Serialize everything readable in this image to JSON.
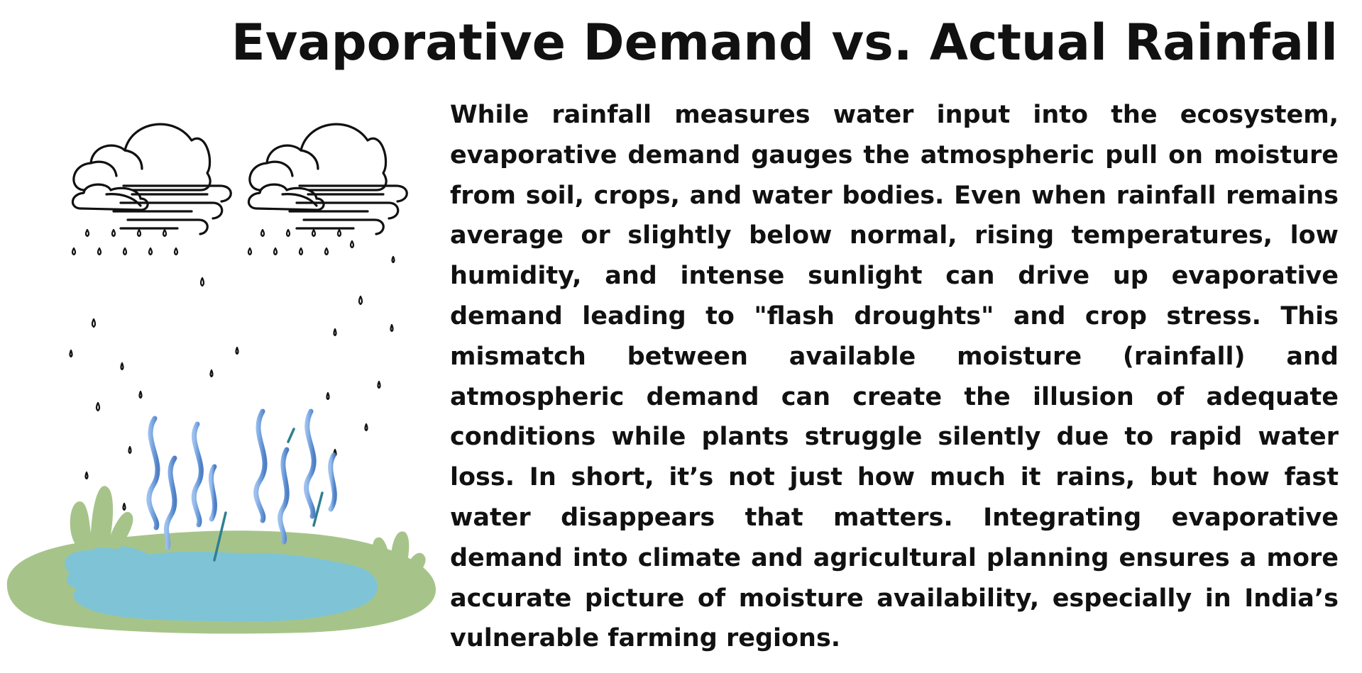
{
  "title": "Evaporative Demand vs. Actual Rainfall",
  "body": "While rainfall measures water input into the ecosystem, evaporative demand gauges the atmospheric pull on moisture from soil, crops, and water bodies. Even when rainfall remains average or slightly below normal, rising temperatures, low humidity, and intense sunlight can drive up evaporative demand leading to \"flash droughts\" and crop stress. This mismatch between available moisture (rainfall) and atmospheric demand can create the illusion of adequate conditions while plants struggle silently due to rapid water loss. In short, it’s not just how much it rains, but how fast water disappears that matters. Integrating evaporative demand into climate and agricultural planning ensures a more accurate picture of moisture availability, especially in India’s vulnerable farming regions.",
  "colors": {
    "text": "#111111",
    "grass": "#a6c48a",
    "water": "#7ec4d6",
    "vapor": "#6f9fdc",
    "outline": "#111111"
  },
  "icons": {
    "cloud_left": "rain-cloud-icon",
    "cloud_right": "rain-cloud-icon",
    "pond": "pond-icon",
    "vapor": "evaporation-wisps-icon"
  }
}
